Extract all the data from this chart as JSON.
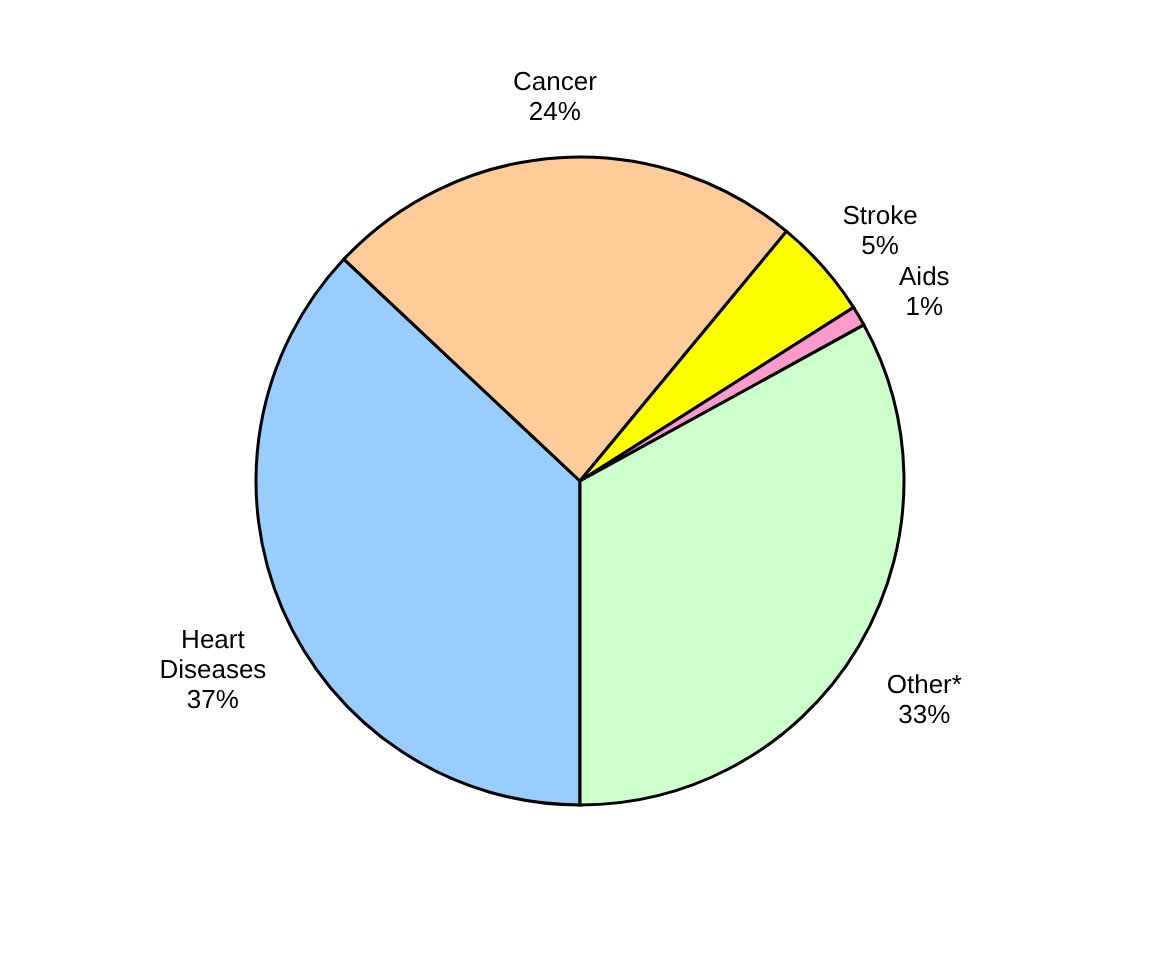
{
  "chart_data": {
    "type": "pie",
    "categories": [
      "Heart\nDiseases",
      "Cancer",
      "Stroke",
      "Aids",
      "Other*"
    ],
    "values": [
      37,
      24,
      5,
      1,
      33
    ],
    "value_labels": [
      "37%",
      "24%",
      "5%",
      "1%",
      "33%"
    ],
    "colors": [
      "#99ccff",
      "#ffcc99",
      "#ffff00",
      "#ff99cc",
      "#ccffcc"
    ],
    "legend": false
  }
}
